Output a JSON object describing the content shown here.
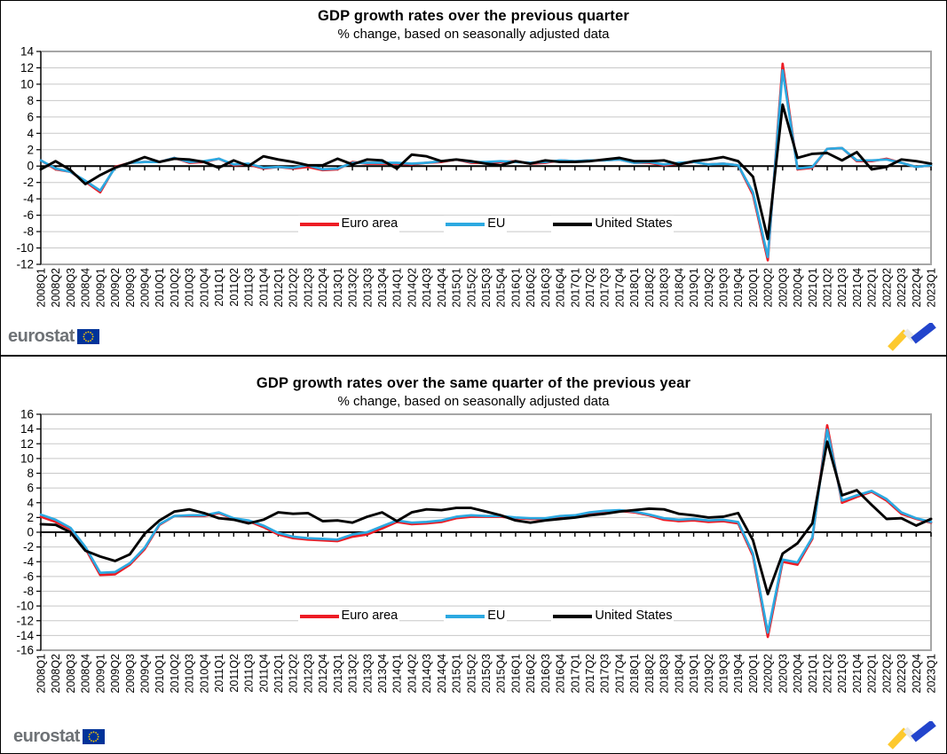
{
  "footer": {
    "brand": "eurostat",
    "flag_icon": "eu-flag-icon",
    "trend_icon": "trend-arrow-icon"
  },
  "chart_data": [
    {
      "type": "line",
      "title": "GDP growth rates over the previous quarter",
      "subtitle": "% change, based on seasonally adjusted data",
      "xlabel": "",
      "ylabel": "",
      "ylim": [
        -12,
        14
      ],
      "ytick": 2,
      "grid": true,
      "legend_position": "inside-bottom-center",
      "x": [
        "2008Q1",
        "2008Q2",
        "2008Q3",
        "2008Q4",
        "2009Q1",
        "2009Q2",
        "2009Q3",
        "2009Q4",
        "2010Q1",
        "2010Q2",
        "2010Q3",
        "2010Q4",
        "2011Q1",
        "2011Q2",
        "2011Q3",
        "2011Q4",
        "2012Q1",
        "2012Q2",
        "2012Q3",
        "2012Q4",
        "2013Q1",
        "2013Q2",
        "2013Q3",
        "2013Q4",
        "2014Q1",
        "2014Q2",
        "2014Q3",
        "2014Q4",
        "2015Q1",
        "2015Q2",
        "2015Q3",
        "2015Q4",
        "2016Q1",
        "2016Q2",
        "2016Q3",
        "2016Q4",
        "2017Q1",
        "2017Q2",
        "2017Q3",
        "2017Q4",
        "2018Q1",
        "2018Q2",
        "2018Q3",
        "2018Q4",
        "2019Q1",
        "2019Q2",
        "2019Q3",
        "2019Q4",
        "2020Q1",
        "2020Q2",
        "2020Q3",
        "2020Q4",
        "2021Q1",
        "2021Q2",
        "2021Q3",
        "2021Q4",
        "2022Q1",
        "2022Q2",
        "2022Q3",
        "2022Q4",
        "2023Q1"
      ],
      "series": [
        {
          "name": "Euro area",
          "color": "#ED1C24",
          "values": [
            0.7,
            -0.4,
            -0.7,
            -1.9,
            -3.2,
            -0.1,
            0.4,
            0.5,
            0.5,
            1.0,
            0.4,
            0.5,
            0.9,
            0.1,
            0.2,
            -0.3,
            -0.1,
            -0.3,
            -0.1,
            -0.5,
            -0.4,
            0.5,
            0.3,
            0.3,
            0.3,
            0.2,
            0.4,
            0.5,
            0.8,
            0.4,
            0.4,
            0.5,
            0.6,
            0.3,
            0.4,
            0.7,
            0.6,
            0.7,
            0.7,
            0.8,
            0.4,
            0.4,
            0.1,
            0.3,
            0.5,
            0.2,
            0.3,
            0.1,
            -3.5,
            -11.5,
            12.5,
            -0.4,
            -0.2,
            2.1,
            2.2,
            0.6,
            0.6,
            0.9,
            0.4,
            -0.1,
            0.1
          ]
        },
        {
          "name": "EU",
          "color": "#2CA9E1",
          "values": [
            0.7,
            -0.3,
            -0.7,
            -1.8,
            -3.0,
            -0.2,
            0.4,
            0.5,
            0.5,
            1.0,
            0.5,
            0.6,
            0.9,
            0.2,
            0.3,
            -0.2,
            -0.1,
            -0.2,
            0.1,
            -0.4,
            -0.3,
            0.4,
            0.4,
            0.4,
            0.4,
            0.3,
            0.4,
            0.6,
            0.8,
            0.5,
            0.5,
            0.6,
            0.5,
            0.4,
            0.5,
            0.7,
            0.6,
            0.7,
            0.7,
            0.8,
            0.4,
            0.5,
            0.2,
            0.4,
            0.5,
            0.2,
            0.3,
            0.1,
            -3.2,
            -11.1,
            11.7,
            -0.3,
            -0.1,
            2.1,
            2.2,
            0.7,
            0.7,
            0.8,
            0.4,
            -0.1,
            0.1
          ]
        },
        {
          "name": "United States",
          "color": "#000000",
          "values": [
            -0.4,
            0.6,
            -0.5,
            -2.2,
            -1.1,
            -0.2,
            0.4,
            1.1,
            0.5,
            0.9,
            0.8,
            0.5,
            -0.2,
            0.7,
            0.0,
            1.2,
            0.8,
            0.5,
            0.1,
            0.1,
            0.9,
            0.2,
            0.8,
            0.7,
            -0.3,
            1.4,
            1.2,
            0.6,
            0.8,
            0.6,
            0.3,
            0.1,
            0.6,
            0.3,
            0.7,
            0.5,
            0.5,
            0.6,
            0.8,
            1.0,
            0.6,
            0.6,
            0.7,
            0.2,
            0.6,
            0.8,
            1.1,
            0.6,
            -1.3,
            -8.9,
            7.5,
            1.0,
            1.5,
            1.6,
            0.7,
            1.7,
            -0.4,
            -0.1,
            0.8,
            0.6,
            0.3
          ]
        }
      ]
    },
    {
      "type": "line",
      "title": "GDP growth rates over the same quarter of the previous year",
      "subtitle": "% change, based on seasonally adjusted data",
      "xlabel": "",
      "ylabel": "",
      "ylim": [
        -16,
        16
      ],
      "ytick": 2,
      "grid": true,
      "legend_position": "inside-bottom-center",
      "x": [
        "2008Q1",
        "2008Q2",
        "2008Q3",
        "2008Q4",
        "2009Q1",
        "2009Q2",
        "2009Q3",
        "2009Q4",
        "2010Q1",
        "2010Q2",
        "2010Q3",
        "2010Q4",
        "2011Q1",
        "2011Q2",
        "2011Q3",
        "2011Q4",
        "2012Q1",
        "2012Q2",
        "2012Q3",
        "2012Q4",
        "2013Q1",
        "2013Q2",
        "2013Q3",
        "2013Q4",
        "2014Q1",
        "2014Q2",
        "2014Q3",
        "2014Q4",
        "2015Q1",
        "2015Q2",
        "2015Q3",
        "2015Q4",
        "2016Q1",
        "2016Q2",
        "2016Q3",
        "2016Q4",
        "2017Q1",
        "2017Q2",
        "2017Q3",
        "2017Q4",
        "2018Q1",
        "2018Q2",
        "2018Q3",
        "2018Q4",
        "2019Q1",
        "2019Q2",
        "2019Q3",
        "2019Q4",
        "2020Q1",
        "2020Q2",
        "2020Q3",
        "2020Q4",
        "2021Q1",
        "2021Q2",
        "2021Q3",
        "2021Q4",
        "2022Q1",
        "2022Q2",
        "2022Q3",
        "2022Q4",
        "2023Q1"
      ],
      "series": [
        {
          "name": "Euro area",
          "color": "#ED1C24",
          "values": [
            2.1,
            1.4,
            0.4,
            -2.2,
            -5.8,
            -5.7,
            -4.4,
            -2.3,
            1.0,
            2.2,
            2.2,
            2.2,
            2.6,
            1.8,
            1.5,
            0.7,
            -0.3,
            -0.8,
            -1.0,
            -1.1,
            -1.2,
            -0.6,
            -0.3,
            0.5,
            1.4,
            1.1,
            1.2,
            1.4,
            1.9,
            2.1,
            2.1,
            2.1,
            1.9,
            1.8,
            1.8,
            2.1,
            2.1,
            2.5,
            2.8,
            2.9,
            2.7,
            2.3,
            1.7,
            1.5,
            1.6,
            1.4,
            1.5,
            1.2,
            -3.2,
            -14.2,
            -4.0,
            -4.4,
            -0.9,
            14.5,
            4.0,
            4.8,
            5.5,
            4.3,
            2.5,
            1.8,
            1.3
          ]
        },
        {
          "name": "EU",
          "color": "#2CA9E1",
          "values": [
            2.4,
            1.7,
            0.6,
            -2.0,
            -5.5,
            -5.4,
            -4.2,
            -2.1,
            1.1,
            2.2,
            2.3,
            2.3,
            2.7,
            1.9,
            1.6,
            0.9,
            -0.1,
            -0.6,
            -0.8,
            -0.9,
            -1.0,
            -0.3,
            0.0,
            0.8,
            1.6,
            1.3,
            1.4,
            1.6,
            2.1,
            2.3,
            2.2,
            2.2,
            2.0,
            1.9,
            1.9,
            2.2,
            2.3,
            2.7,
            2.9,
            3.0,
            2.8,
            2.4,
            1.9,
            1.7,
            1.8,
            1.6,
            1.7,
            1.4,
            -2.9,
            -13.6,
            -3.7,
            -4.1,
            -0.7,
            13.9,
            4.3,
            5.0,
            5.6,
            4.5,
            2.7,
            1.9,
            1.4
          ]
        },
        {
          "name": "United States",
          "color": "#000000",
          "values": [
            1.1,
            1.0,
            0.0,
            -2.5,
            -3.3,
            -3.9,
            -3.0,
            -0.2,
            1.6,
            2.8,
            3.1,
            2.6,
            1.9,
            1.7,
            1.2,
            1.7,
            2.7,
            2.5,
            2.6,
            1.5,
            1.6,
            1.3,
            2.1,
            2.7,
            1.5,
            2.7,
            3.1,
            3.0,
            3.3,
            3.3,
            2.8,
            2.3,
            1.6,
            1.3,
            1.6,
            1.8,
            2.0,
            2.3,
            2.5,
            2.8,
            3.0,
            3.2,
            3.1,
            2.5,
            2.3,
            2.0,
            2.1,
            2.6,
            -1.1,
            -8.4,
            -2.9,
            -1.5,
            1.2,
            12.3,
            5.0,
            5.7,
            3.7,
            1.8,
            1.9,
            0.9,
            1.8
          ]
        }
      ]
    }
  ]
}
